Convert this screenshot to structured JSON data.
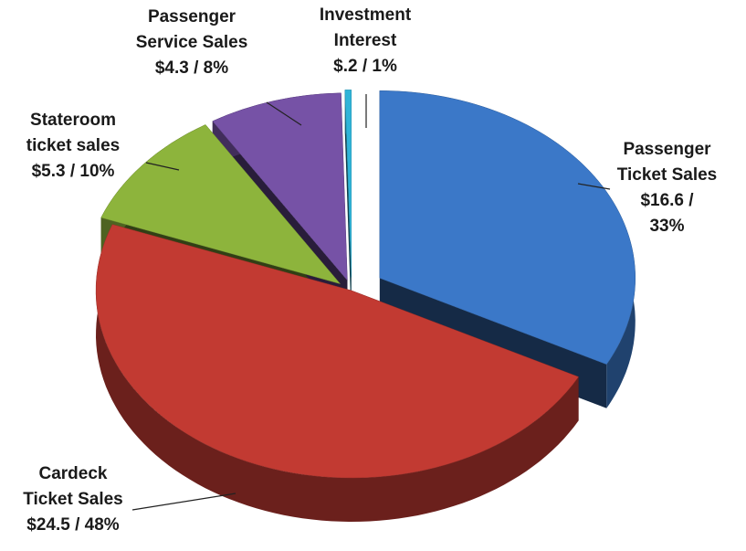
{
  "chart_data": {
    "type": "pie",
    "categories": [
      "Passenger Ticket Sales",
      "Cardeck Ticket Sales",
      "Stateroom ticket sales",
      "Passenger Service Sales",
      "Investment Interest"
    ],
    "values": [
      16.6,
      24.5,
      5.3,
      4.3,
      0.2
    ],
    "value_labels": [
      "$16.6 / 33%",
      "$24.5 / 48%",
      "$5.3 / 10%",
      "$4.3 / 8%",
      "$.2 / 1%"
    ],
    "colors": [
      "#3b78c8",
      "#c23a32",
      "#8db43c",
      "#7652a6",
      "#30b4d8"
    ]
  }
}
